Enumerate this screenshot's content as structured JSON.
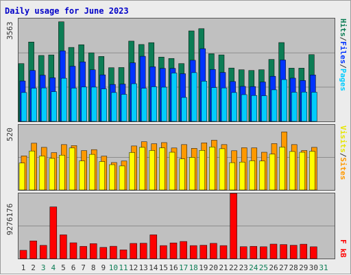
{
  "title": "Daily usage for June 2023",
  "colors": {
    "hits": "#0c7d55",
    "files": "#0033ff",
    "pages": "#00ccff",
    "visits": "#ffff00",
    "sites": "#ff9900",
    "kb": "#ff0000",
    "weekend_label": "#0c7d55",
    "weekday_label": "#333333",
    "title": "#0000c8"
  },
  "panels": {
    "top": {
      "max_label": "3563",
      "legend": [
        "Pages",
        "/",
        "Files",
        "/",
        "Hits"
      ]
    },
    "middle": {
      "max_label": "520",
      "legend": [
        "Sites",
        "/",
        "Visits"
      ]
    },
    "bottom": {
      "max_label": "9276176",
      "legend": [
        "kB",
        "F"
      ]
    }
  },
  "chart_data": {
    "type": "bar",
    "title": "Daily usage for June 2023",
    "categories": [
      "1",
      "2",
      "3",
      "4",
      "5",
      "6",
      "7",
      "8",
      "9",
      "10",
      "11",
      "12",
      "13",
      "14",
      "15",
      "16",
      "17",
      "18",
      "19",
      "20",
      "21",
      "22",
      "23",
      "24",
      "25",
      "26",
      "27",
      "28",
      "29",
      "30",
      "31"
    ],
    "weekend_days": [
      "3",
      "4",
      "10",
      "11",
      "17",
      "18",
      "24",
      "25",
      "31"
    ],
    "series": [
      {
        "name": "Hits",
        "panel": "top",
        "values": [
          2002,
          2750,
          2283,
          2302,
          3450,
          2563,
          2656,
          2375,
          2250,
          1860,
          1866,
          2781,
          2663,
          2728,
          2228,
          2180,
          2003,
          3135,
          3212,
          2344,
          2303,
          1849,
          1789,
          1765,
          1790,
          2147,
          2731,
          1844,
          1844,
          2313,
          0
        ]
      },
      {
        "name": "Files",
        "panel": "top",
        "values": [
          1400,
          1764,
          1600,
          1510,
          2444,
          1911,
          2062,
          1787,
          1612,
          1280,
          1292,
          2030,
          2255,
          1891,
          1836,
          1836,
          1652,
          2117,
          2518,
          1800,
          1696,
          1380,
          1213,
          1207,
          1365,
          1563,
          2127,
          1498,
          1416,
          1608,
          0
        ]
      },
      {
        "name": "Pages",
        "panel": "top",
        "values": [
          1000,
          1150,
          1160,
          1030,
          1494,
          1153,
          1191,
          1188,
          1127,
          1000,
          937,
          1305,
          1148,
          1200,
          1186,
          1675,
          830,
          1689,
          1393,
          1172,
          1160,
          1000,
          927,
          898,
          889,
          1094,
          1448,
          1010,
          1016,
          1010,
          0
        ]
      },
      {
        "name": "Sites",
        "panel": "middle",
        "values": [
          272,
          373,
          340,
          298,
          362,
          354,
          314,
          322,
          270,
          219,
          231,
          351,
          385,
          369,
          378,
          335,
          362,
          332,
          376,
          397,
          362,
          313,
          337,
          336,
          301,
          370,
          463,
          362,
          315,
          340,
          0
        ]
      },
      {
        "name": "Visits",
        "panel": "middle",
        "values": [
          215,
          311,
          271,
          252,
          278,
          335,
          232,
          284,
          227,
          202,
          192,
          299,
          340,
          315,
          336,
          301,
          248,
          260,
          316,
          343,
          329,
          218,
          223,
          233,
          231,
          286,
          342,
          307,
          301,
          309,
          0
        ]
      },
      {
        "name": "kB F",
        "panel": "bottom",
        "values": [
          1176000,
          2513000,
          1875000,
          7357000,
          3375000,
          2245000,
          1739000,
          2127000,
          1589000,
          1749000,
          1235000,
          2154000,
          2183000,
          3376000,
          1844000,
          2227000,
          2434000,
          1844000,
          1893000,
          2164000,
          1844000,
          9276176,
          1689000,
          1739000,
          1677000,
          2054000,
          1993000,
          1893000,
          2043000,
          1674000,
          0
        ]
      }
    ],
    "ylim_top": [
      0,
      3563
    ],
    "ylim_middle": [
      0,
      520
    ],
    "ylim_bottom": [
      0,
      9276176
    ],
    "grid": true
  }
}
